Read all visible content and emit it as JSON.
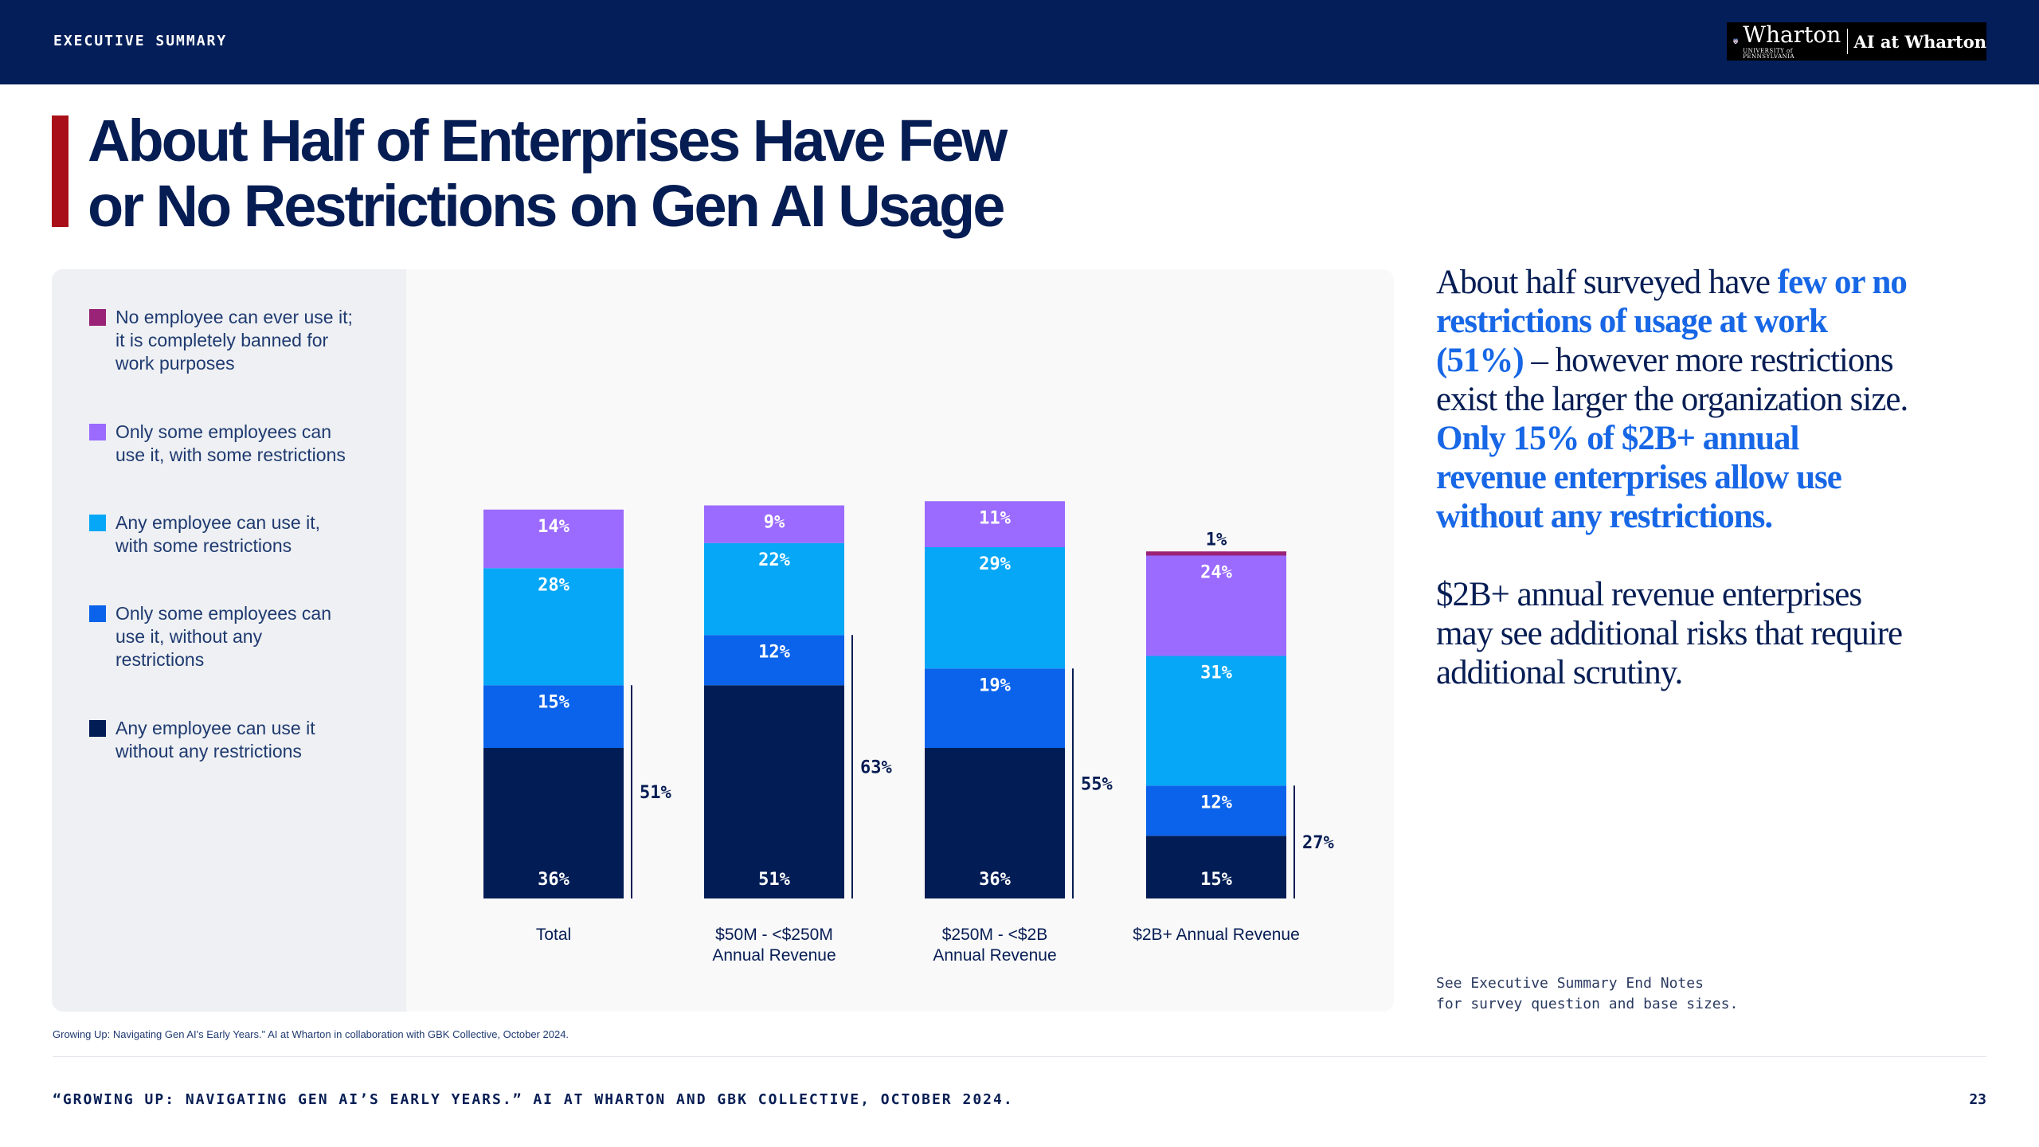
{
  "header": {
    "section_label": "EXECUTIVE SUMMARY",
    "logo_main": "Wharton",
    "logo_sub": "UNIVERSITY of PENNSYLVANIA",
    "logo_right": "AI at Wharton"
  },
  "title": {
    "line1": "About Half of Enterprises Have Few",
    "line2": "or No Restrictions on Gen AI Usage"
  },
  "legend": [
    {
      "label": "No employee can ever use it; it is completely banned for work purposes",
      "color": "#9b2377"
    },
    {
      "label": "Only some employees can use it, with some restrictions",
      "color": "#9b6bff"
    },
    {
      "label": "Any employee can use it, with some restrictions",
      "color": "#06a7f6"
    },
    {
      "label": "Only some employees can use it, without any restrictions",
      "color": "#0a63ea"
    },
    {
      "label": "Any employee can use it without any restrictions",
      "color": "#021d55"
    }
  ],
  "chart_data": {
    "type": "bar",
    "stacked": true,
    "categories": [
      "Total",
      "$50M - <$250M Annual Revenue",
      "$250M - <$2B Annual Revenue",
      "$2B+ Annual Revenue"
    ],
    "series": [
      {
        "name": "Any employee can use it without any restrictions",
        "color": "#021d55",
        "values": [
          36,
          51,
          36,
          15
        ]
      },
      {
        "name": "Only some employees can use it, without any restrictions",
        "color": "#0a63ea",
        "values": [
          15,
          12,
          19,
          12
        ]
      },
      {
        "name": "Any employee can use it, with some restrictions",
        "color": "#06a7f6",
        "values": [
          28,
          22,
          29,
          31
        ]
      },
      {
        "name": "Only some employees can use it, with some restrictions",
        "color": "#9b6bff",
        "values": [
          14,
          9,
          11,
          24
        ]
      },
      {
        "name": "No employee can ever use it; it is completely banned for work purposes",
        "color": "#9b2377",
        "values": [
          0,
          0,
          0,
          1
        ]
      }
    ],
    "value_labels": [
      [
        "36%",
        "15%",
        "28%",
        "14%",
        ""
      ],
      [
        "51%",
        "12%",
        "22%",
        "9%",
        ""
      ],
      [
        "36%",
        "19%",
        "29%",
        "11%",
        ""
      ],
      [
        "15%",
        "12%",
        "31%",
        "24%",
        "1%"
      ]
    ],
    "bracket_totals": [
      "51%",
      "63%",
      "55%",
      "27%"
    ],
    "ylim": [
      0,
      100
    ]
  },
  "commentary": {
    "p1_a": "About half surveyed have ",
    "p1_b": "few or no restrictions of usage at work (51%)",
    "p1_c": " – however more restrictions exist the larger the organization size. ",
    "p1_d": "Only 15% of $2B+ annual revenue enterprises allow use without any restrictions.",
    "p2": "$2B+ annual revenue enterprises may see additional risks that require additional scrutiny."
  },
  "endnote": "See Executive Summary End Notes\nfor survey question and base sizes.",
  "source_small": "Growing Up: Navigating Gen AI's Early Years.\" AI at Wharton in collaboration with GBK Collective, October 2024.",
  "footer": {
    "citation": "“GROWING UP: NAVIGATING GEN AI’S EARLY YEARS.” AI AT WHARTON AND GBK COLLECTIVE, OCTOBER 2024.",
    "page_number": "23"
  }
}
